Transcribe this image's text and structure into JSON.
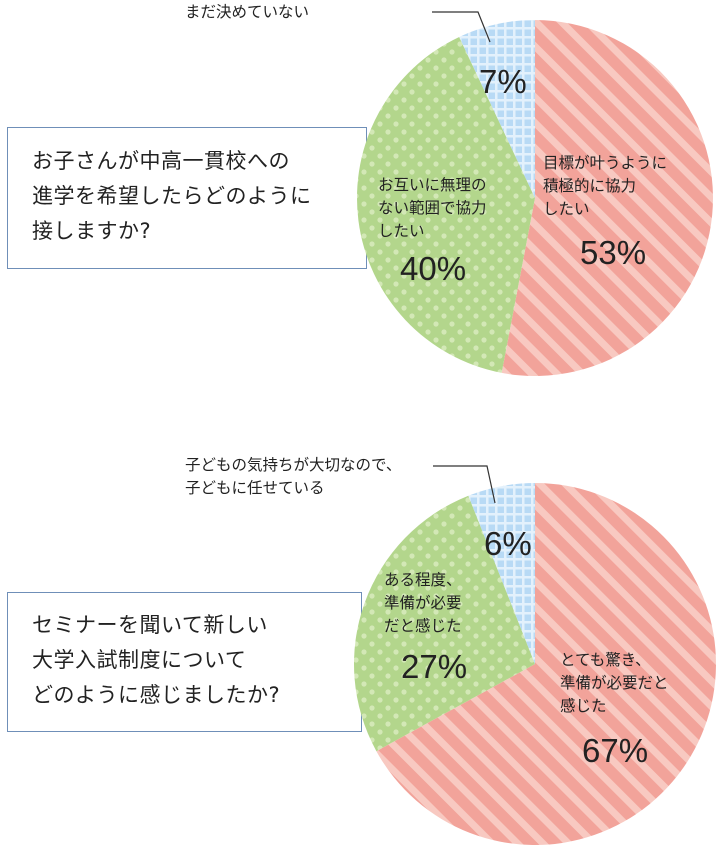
{
  "chart_data": [
    {
      "type": "pie",
      "title": "お子さんが中高一貫校への\n進学を希望したらどのように\n接しますか?",
      "slices": [
        {
          "label": "目標が叶うように\n積極的に協力\nしたい",
          "value": 53,
          "value_label": "53%",
          "color": "#f2a39a",
          "pattern": "stripes"
        },
        {
          "label": "お互いに無理の\nない範囲で協力\nしたい",
          "value": 40,
          "value_label": "40%",
          "color": "#b3d68c",
          "pattern": "dots"
        },
        {
          "label": "まだ決めていない",
          "value": 7,
          "value_label": "7%",
          "color": "#b8daf5",
          "pattern": "grid"
        }
      ]
    },
    {
      "type": "pie",
      "title": "セミナーを聞いて新しい\n大学入試制度について\nどのように感じましたか?",
      "slices": [
        {
          "label": "とても驚き、\n準備が必要だと\n感じた",
          "value": 67,
          "value_label": "67%",
          "color": "#f2a39a",
          "pattern": "stripes"
        },
        {
          "label": "ある程度、\n準備が必要\nだと感じた",
          "value": 27,
          "value_label": "27%",
          "color": "#b3d68c",
          "pattern": "dots"
        },
        {
          "label": "子どもの気持ちが大切なので、\n子どもに任せている",
          "value": 6,
          "value_label": "6%",
          "color": "#b8daf5",
          "pattern": "grid"
        }
      ]
    }
  ]
}
